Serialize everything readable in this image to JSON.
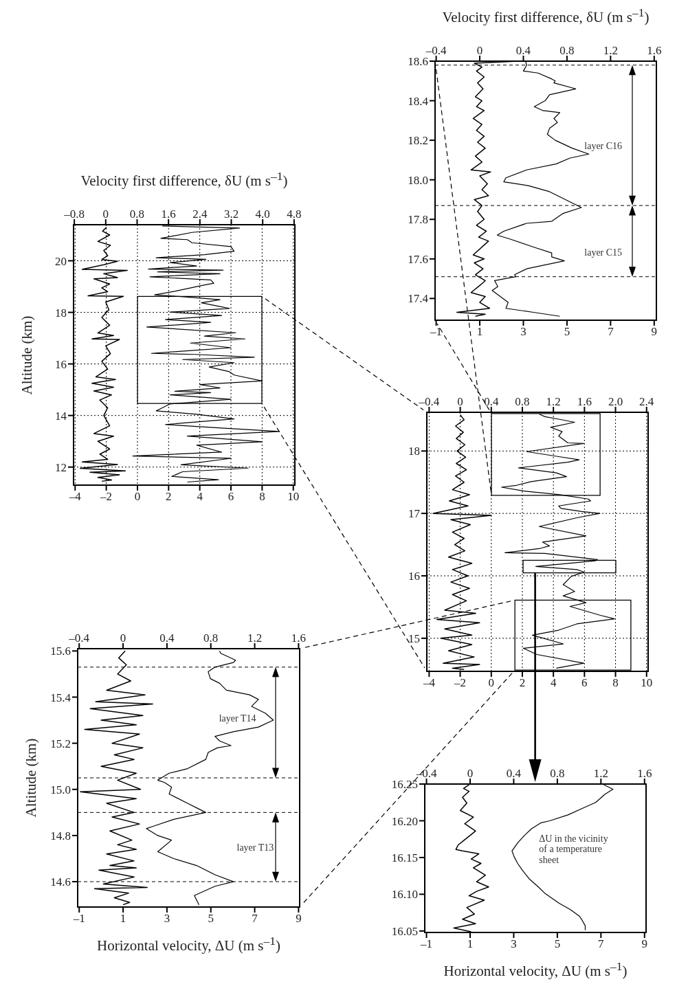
{
  "chart_data": [
    {
      "type": "line",
      "x2label": "Velocity first difference, δU (m s$^{–1}$)",
      "xlim": [
        -1.05,
        9.1
      ],
      "xticks": [
        {
          "value": -1,
          "label": "–1"
        },
        1,
        3,
        5,
        7,
        9
      ],
      "x2lim": [
        -0.41,
        1.62
      ],
      "x2ticks": [
        {
          "value": -0.4,
          "label": "–0.4"
        },
        0,
        0.4,
        0.8,
        1.2,
        1.6
      ],
      "ylim": [
        17.29,
        18.6
      ],
      "yticks": [
        17.4,
        17.6,
        17.8,
        {
          "value": 18,
          "label": "18.0"
        },
        18.2,
        18.4,
        18.6
      ],
      "grid": false,
      "line_style": "solid",
      "series": [
        {
          "color": "#000000",
          "axis": "x2",
          "x": [
            0.35,
            -0.05,
            0.02,
            -0.03,
            0.04,
            -0.02,
            0.03,
            -0.04,
            0.02,
            -0.03,
            0.04,
            -0.06,
            0.02,
            -0.03,
            0.04,
            -0.02,
            0.05,
            -0.04,
            0.02,
            -0.08,
            0.1,
            0,
            0.07,
            0.02,
            0.08,
            -0.05,
            0.02,
            -0.02,
            0.04,
            -0.03,
            0.06,
            -0.01,
            0.08,
            -0.06,
            0.04,
            -0.05,
            0.03,
            -0.04,
            0.05,
            0.01,
            -0.08,
            0.05,
            0,
            0.09,
            -0.21,
            0.05,
            -0.04
          ],
          "values": [
            18.6,
            18.59,
            18.57,
            18.55,
            18.52,
            18.49,
            18.46,
            18.42,
            18.4,
            18.37,
            18.35,
            18.31,
            18.28,
            18.25,
            18.22,
            18.19,
            18.16,
            18.12,
            18.09,
            18.05,
            18.04,
            18.02,
            17.98,
            17.95,
            17.92,
            17.9,
            17.87,
            17.84,
            17.8,
            17.77,
            17.74,
            17.71,
            17.69,
            17.62,
            17.6,
            17.58,
            17.55,
            17.52,
            17.49,
            17.47,
            17.43,
            17.41,
            17.38,
            17.35,
            17.33,
            17.32,
            17.31
          ]
        },
        {
          "color": "#000000",
          "x": [
            3.1,
            3.15,
            3.0,
            3.67,
            4.3,
            4.46,
            4.4,
            5.4,
            4.2,
            4.0,
            3.5,
            3.9,
            4.67,
            4.4,
            4.56,
            4.2,
            4.1,
            4.46,
            5.24,
            6.0,
            5.14,
            4.5,
            3.15,
            2.2,
            2.1,
            3.25,
            4.2,
            4.93,
            5.66,
            4.82,
            4.3,
            3.15,
            2.1,
            1.8,
            2.4,
            3.46,
            4.3,
            4.3,
            4.88,
            3.15,
            2.6,
            2.65,
            1.68,
            1.83,
            1.57,
            2.3,
            2.2,
            3.46,
            4.67
          ],
          "values": [
            18.6,
            18.58,
            18.55,
            18.54,
            18.51,
            18.5,
            18.49,
            18.46,
            18.43,
            18.4,
            18.37,
            18.35,
            18.34,
            18.31,
            18.29,
            18.26,
            18.23,
            18.2,
            18.16,
            18.13,
            18.11,
            18.08,
            18.05,
            18.01,
            17.99,
            17.97,
            17.94,
            17.9,
            17.86,
            17.83,
            17.79,
            17.78,
            17.74,
            17.72,
            17.7,
            17.66,
            17.63,
            17.61,
            17.59,
            17.55,
            17.52,
            17.51,
            17.49,
            17.46,
            17.44,
            17.38,
            17.35,
            17.33,
            17.31
          ]
        }
      ],
      "ref_lines": [
        {
          "axis": "y",
          "value": 18.58,
          "color": "#000000",
          "line_style": "dashed"
        },
        {
          "axis": "y",
          "value": 17.87,
          "color": "#000000",
          "line_style": "dashed"
        },
        {
          "axis": "y",
          "value": 17.51,
          "color": "#000000",
          "line_style": "dashed"
        }
      ],
      "annotations": [
        "layer C16",
        "layer C15"
      ]
    },
    {
      "type": "line",
      "x2label": "Velocity first difference, δU (m s$^{–1}$)",
      "ylabel": "Altitude (km)",
      "xlim": [
        -4.1,
        10.1
      ],
      "xticks": [
        {
          "value": -4,
          "label": "–4"
        },
        {
          "value": -2,
          "label": "–2"
        },
        0,
        2,
        4,
        6,
        8,
        10
      ],
      "x2lim": [
        -0.82,
        4.82
      ],
      "x2ticks": [
        {
          "value": -0.8,
          "label": "–0.8"
        },
        0,
        0.8,
        1.6,
        2.4,
        3.2,
        {
          "value": 4,
          "label": "4.0"
        },
        4.8
      ],
      "ylim": [
        11.3,
        21.4
      ],
      "yticks": [
        12,
        14,
        16,
        18,
        20
      ],
      "grid": true,
      "line_style": "solid",
      "series": [
        {
          "color": "#000000",
          "axis": "x2",
          "x": [
            0.02,
            -0.08,
            0.1,
            -0.2,
            0.12,
            -0.05,
            0.05,
            -0.1,
            0.3,
            -0.05,
            -0.6,
            0.55,
            -0.05,
            0.3,
            -0.3,
            0.1,
            -0.1,
            0.05,
            -0.45,
            0.45,
            0,
            0.08,
            -0.1,
            0.1,
            -0.2,
            0.2,
            -0.35,
            0.35,
            0,
            0.12,
            -0.1,
            0.05,
            -0.25,
            0.25,
            -0.35,
            0.2,
            -0.3,
            0.15,
            -0.15,
            0.05,
            -0.05,
            0.1,
            -0.3,
            0.2,
            -0.2,
            0.1,
            -0.15,
            0.05,
            -0.6,
            0.3,
            -0.65,
            0.5,
            -0.4,
            0.35,
            -0.2,
            0.15,
            -0.1
          ],
          "values": [
            21.3,
            21.15,
            21.0,
            20.75,
            20.6,
            20.4,
            20.2,
            20.05,
            19.98,
            19.85,
            19.67,
            19.63,
            19.5,
            19.35,
            19.3,
            19.1,
            18.95,
            18.8,
            18.64,
            18.62,
            18.4,
            18.1,
            17.8,
            17.5,
            17.2,
            17.1,
            16.97,
            16.95,
            16.7,
            16.4,
            16.1,
            15.8,
            15.5,
            15.4,
            15.25,
            15.1,
            14.95,
            14.8,
            14.6,
            14.3,
            14.0,
            13.6,
            13.3,
            13.2,
            13.0,
            12.7,
            12.5,
            12.3,
            12.2,
            12.1,
            11.95,
            11.85,
            11.8,
            11.7,
            11.6,
            11.5,
            11.45
          ]
        },
        {
          "color": "#000000",
          "x": [
            1.6,
            6.55,
            3.5,
            1.5,
            3.2,
            3.5,
            6.0,
            6.2,
            4.3,
            1.2,
            4.4,
            2.1,
            3.8,
            0.7,
            5.5,
            1.3,
            5.3,
            0.8,
            4.7,
            4.9,
            4.1,
            2.4,
            1.1,
            2.8,
            5.3,
            4.1,
            5.9,
            2.1,
            5.4,
            1.8,
            4.7,
            0.6,
            6.3,
            4.3,
            6.9,
            3.4,
            6.0,
            0.9,
            3.7,
            7.5,
            2.9,
            6.2,
            4.6,
            5.9,
            6.2,
            8.0,
            4.0,
            5.3,
            2.4,
            4.7,
            2.1,
            6.0,
            2.1,
            1.2,
            3.8,
            6.2,
            1.8,
            5.0,
            9.1,
            3.2,
            8.0,
            3.8,
            5.4,
            -0.3,
            6.0,
            2.8,
            7.1,
            2.9,
            2.2,
            5.2,
            3.2
          ],
          "values": [
            21.35,
            21.27,
            21.1,
            20.87,
            20.82,
            20.7,
            20.55,
            20.37,
            20.24,
            20.12,
            20.06,
            19.93,
            19.8,
            19.68,
            19.64,
            19.57,
            19.5,
            19.38,
            19.26,
            19.13,
            19.04,
            18.82,
            18.68,
            18.61,
            18.49,
            18.37,
            18.15,
            18.01,
            17.88,
            17.72,
            17.61,
            17.43,
            17.21,
            17.08,
            16.97,
            16.81,
            16.63,
            16.41,
            16.37,
            16.26,
            16.17,
            16.05,
            15.88,
            15.7,
            15.57,
            15.34,
            15.2,
            15.07,
            14.94,
            14.89,
            14.8,
            14.63,
            14.45,
            14.18,
            14.05,
            13.87,
            13.65,
            13.53,
            13.38,
            13.2,
            12.98,
            12.85,
            12.58,
            12.43,
            12.34,
            12.09,
            11.96,
            11.82,
            11.64,
            11.51,
            11.42
          ]
        }
      ]
    },
    {
      "type": "line",
      "xlim": [
        -4.15,
        10.1
      ],
      "xticks": [
        {
          "value": -4,
          "label": "–4"
        },
        {
          "value": -2,
          "label": "–2"
        },
        0,
        2,
        4,
        6,
        8,
        10
      ],
      "x2lim": [
        -0.43,
        2.42
      ],
      "x2ticks": [
        {
          "value": -0.4,
          "label": "–0.4"
        },
        0,
        0.4,
        0.8,
        1.2,
        1.6,
        {
          "value": 2,
          "label": "2.0"
        },
        2.4
      ],
      "ylim": [
        14.47,
        18.62
      ],
      "yticks": [
        15,
        16,
        17,
        18
      ],
      "grid": true,
      "line_style": "solid",
      "series": [
        {
          "color": "#000000",
          "axis": "x2",
          "x": [
            0,
            0.05,
            -0.06,
            0.04,
            -0.05,
            0.06,
            -0.04,
            0.07,
            -0.05,
            0.08,
            -0.06,
            0.05,
            -0.1,
            0.12,
            -0.14,
            0.1,
            -0.35,
            0.4,
            -0.12,
            0.13,
            -0.1,
            0.05,
            -0.07,
            0.06,
            -0.15,
            0.15,
            -0.1,
            0.1,
            -0.12,
            0.12,
            -0.1,
            0.08,
            -0.2,
            0.2,
            -0.3,
            0.25,
            -0.2,
            0.15,
            -0.25,
            0.15,
            -0.15,
            0.18,
            -0.22,
            0.25,
            -0.1,
            0.05
          ],
          "values": [
            18.58,
            18.5,
            18.4,
            18.3,
            18.2,
            18.1,
            18.0,
            17.9,
            17.8,
            17.7,
            17.6,
            17.5,
            17.38,
            17.3,
            17.2,
            17.12,
            17.0,
            16.97,
            16.9,
            16.82,
            16.7,
            16.6,
            16.5,
            16.4,
            16.3,
            16.2,
            16.1,
            16.0,
            15.9,
            15.8,
            15.7,
            15.6,
            15.45,
            15.4,
            15.3,
            15.25,
            15.15,
            15.05,
            15.0,
            14.9,
            14.8,
            14.7,
            14.6,
            14.58,
            14.52,
            14.5
          ]
        },
        {
          "color": "#000000",
          "x": [
            3.09,
            3.46,
            4.34,
            5.37,
            3.82,
            4.56,
            4.34,
            4.93,
            5.96,
            2.28,
            4.34,
            5.66,
            4.93,
            1.76,
            4.19,
            4.85,
            2.57,
            1.62,
            0.66,
            2.06,
            4.41,
            6.25,
            6.4,
            4.34,
            4.49,
            5.81,
            6.99,
            5.51,
            3.09,
            6.1,
            3.31,
            3.75,
            3.16,
            0.88,
            3.46,
            6.84,
            6.69,
            2.87,
            5.51,
            5.96,
            5.15,
            4.63,
            5.37,
            4.63,
            6.1,
            5.07,
            6.99,
            7.94,
            5.51,
            4.34,
            2.65,
            4.63,
            2.06,
            2.94,
            5.96,
            4.19
          ],
          "values": [
            18.59,
            18.55,
            18.51,
            18.46,
            18.38,
            18.31,
            18.24,
            18.13,
            18.12,
            17.99,
            17.91,
            17.86,
            17.82,
            17.73,
            17.65,
            17.59,
            17.51,
            17.45,
            17.42,
            17.36,
            17.3,
            17.23,
            17.2,
            17.12,
            17.08,
            17.03,
            17.0,
            16.93,
            16.79,
            16.64,
            16.54,
            16.48,
            16.44,
            16.37,
            16.36,
            16.26,
            16.24,
            16.15,
            16.1,
            16.06,
            15.99,
            15.86,
            15.75,
            15.68,
            15.57,
            15.51,
            15.37,
            15.31,
            15.23,
            15.13,
            15.05,
            14.91,
            14.84,
            14.74,
            14.6,
            14.52
          ]
        }
      ]
    },
    {
      "type": "line",
      "xlabel": "Horizontal velocity, ΔU (m s$^{–1}$)",
      "ylabel": "Altitude (km)",
      "xlim": [
        -1.07,
        9.05
      ],
      "xticks": [
        {
          "value": -1,
          "label": "–1"
        },
        1,
        3,
        5,
        7,
        9
      ],
      "x2lim": [
        -0.414,
        1.61
      ],
      "x2ticks": [
        {
          "value": -0.4,
          "label": "–0.4"
        },
        0,
        0.4,
        0.8,
        1.2,
        1.6
      ],
      "ylim": [
        14.49,
        15.61
      ],
      "yticks": [
        14.6,
        14.8,
        {
          "value": 15,
          "label": "15.0"
        },
        15.2,
        15.4,
        15.6
      ],
      "grid": false,
      "line_style": "solid",
      "series": [
        {
          "color": "#000000",
          "axis": "x2",
          "x": [
            0.02,
            -0.04,
            0.03,
            -0.05,
            0.07,
            -0.15,
            0.2,
            -0.25,
            0.27,
            -0.3,
            0.18,
            -0.2,
            0.12,
            -0.35,
            0.15,
            -0.1,
            0.18,
            -0.08,
            0.1,
            -0.2,
            0.12,
            -0.05,
            0.16,
            -0.39,
            0.12,
            -0.15,
            0.1,
            -0.1,
            0.15,
            -0.12,
            0.08,
            -0.05,
            0.12,
            -0.15,
            0.1,
            -0.12,
            0.12,
            -0.22,
            0.1,
            -0.18,
            0.22,
            -0.26,
            0.05,
            -0.08,
            0.06,
            0
          ],
          "values": [
            15.6,
            15.57,
            15.54,
            15.5,
            15.47,
            15.43,
            15.41,
            15.38,
            15.37,
            15.35,
            15.32,
            15.3,
            15.28,
            15.26,
            15.24,
            15.2,
            15.18,
            15.15,
            15.13,
            15.1,
            15.07,
            15.04,
            15.0,
            14.99,
            14.96,
            14.94,
            14.9,
            14.88,
            14.85,
            14.82,
            14.78,
            14.76,
            14.74,
            14.72,
            14.69,
            14.67,
            14.66,
            14.65,
            14.62,
            14.59,
            14.575,
            14.57,
            14.55,
            14.53,
            14.51,
            14.5
          ]
        },
        {
          "color": "#000000",
          "x": [
            5.4,
            5.45,
            6.13,
            6.03,
            5.19,
            4.88,
            4.98,
            5.4,
            5.71,
            6.76,
            7.17,
            6.86,
            7.49,
            7.85,
            7.17,
            6.03,
            5.19,
            5.4,
            5.92,
            5.29,
            4.88,
            4.77,
            3.94,
            3.1,
            2.58,
            2.89,
            3.21,
            3.1,
            3.94,
            4.35,
            4.77,
            3.31,
            2.37,
            2.06,
            2.58,
            3.21,
            2.58,
            3.31,
            4.35,
            5.19,
            6.03,
            5.19,
            4.25,
            4.46
          ],
          "values": [
            15.6,
            15.59,
            15.56,
            15.55,
            15.53,
            15.51,
            15.48,
            15.46,
            15.43,
            15.41,
            15.39,
            15.36,
            15.33,
            15.3,
            15.27,
            15.25,
            15.23,
            15.21,
            15.19,
            15.18,
            15.16,
            15.13,
            15.09,
            15.07,
            15.04,
            15.03,
            15.01,
            14.98,
            14.94,
            14.92,
            14.9,
            14.87,
            14.84,
            14.83,
            14.8,
            14.78,
            14.73,
            14.7,
            14.67,
            14.63,
            14.6,
            14.58,
            14.54,
            14.5
          ]
        }
      ],
      "ref_lines": [
        {
          "axis": "y",
          "value": 15.53,
          "color": "#000000",
          "line_style": "dashed"
        },
        {
          "axis": "y",
          "value": 15.05,
          "color": "#000000",
          "line_style": "dashed"
        },
        {
          "axis": "y",
          "value": 14.9,
          "color": "#000000",
          "line_style": "dashed"
        },
        {
          "axis": "y",
          "value": 14.6,
          "color": "#000000",
          "line_style": "dashed"
        }
      ],
      "annotations": [
        "layer T14",
        "layer T13"
      ]
    },
    {
      "type": "line",
      "xlabel": "Horizontal velocity, ΔU (m s$^{–1}$)",
      "xlim": [
        -1.08,
        9.07
      ],
      "xticks": [
        {
          "value": -1,
          "label": "–1"
        },
        1,
        3,
        5,
        7,
        9
      ],
      "x2lim": [
        -0.416,
        1.614
      ],
      "x2ticks": [
        {
          "value": -0.4,
          "label": "–0.4"
        },
        0,
        0.4,
        0.8,
        1.2,
        1.6
      ],
      "ylim": [
        16.048,
        16.25
      ],
      "yticks": [
        16.05,
        {
          "value": 16.1,
          "label": "16.10"
        },
        16.15,
        {
          "value": 16.2,
          "label": "16.20"
        },
        16.25
      ],
      "grid": false,
      "line_style": "solid",
      "series": [
        {
          "color": "#000000",
          "axis": "x2",
          "x": [
            -0.01,
            -0.06,
            -0.01,
            -0.07,
            -0.03,
            -0.09,
            0.03,
            -0.05,
            0.05,
            -0.06,
            -0.11,
            -0.13,
            -0.07,
            0.08,
            0.01,
            0.1,
            0.03,
            0.14,
            0.06,
            0.17,
            0.06,
            -0.01,
            0.13,
            -0.03,
            0.04,
            -0.07,
            0.05,
            -0.15,
            0.01
          ],
          "values": [
            16.249,
            16.244,
            16.24,
            16.232,
            16.224,
            16.214,
            16.205,
            16.196,
            16.186,
            16.173,
            16.167,
            16.161,
            16.159,
            16.155,
            16.148,
            16.142,
            16.136,
            16.126,
            16.117,
            16.11,
            16.104,
            16.098,
            16.092,
            16.082,
            16.073,
            16.066,
            16.06,
            16.054,
            16.049
          ]
        },
        {
          "color": "#000000",
          "x": [
            7.13,
            7.55,
            7.18,
            6.76,
            6.23,
            5.49,
            4.65,
            4.23,
            3.81,
            3.49,
            3.18,
            2.92,
            3.02,
            3.18,
            3.39,
            3.71,
            4.13,
            4.44,
            5.07,
            5.6,
            6.02,
            6.13,
            6.28,
            6.28
          ],
          "values": [
            16.249,
            16.243,
            16.236,
            16.225,
            16.218,
            16.208,
            16.2,
            16.197,
            16.189,
            16.18,
            16.17,
            16.159,
            16.151,
            16.142,
            16.133,
            16.121,
            16.11,
            16.101,
            16.088,
            16.079,
            16.07,
            16.065,
            16.057,
            16.051
          ]
        }
      ],
      "annotations": [
        "ΔU in the vicinity of a temperature sheet"
      ]
    }
  ]
}
